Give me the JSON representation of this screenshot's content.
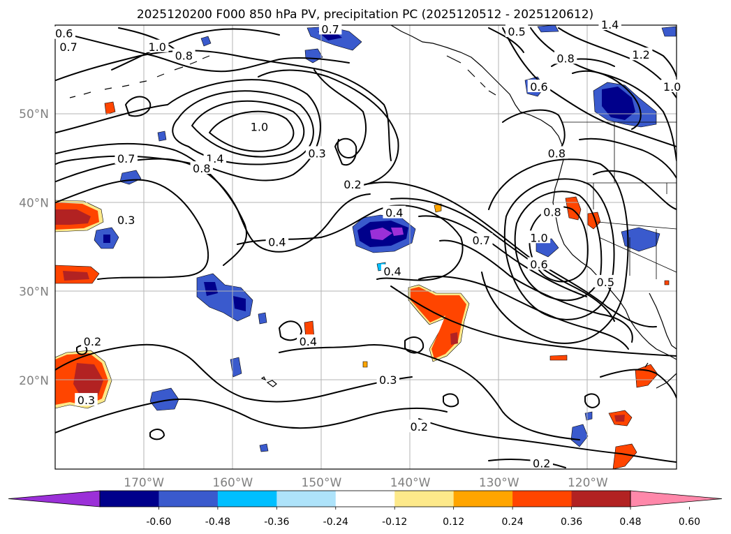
{
  "title": "2025120200 F000 850 hPa PV, precipitation PC (2025120512 - 2025120612)",
  "lat_labels": [
    {
      "label": "50°N",
      "lat": 50
    },
    {
      "label": "40°N",
      "lat": 40
    },
    {
      "label": "30°N",
      "lat": 30
    },
    {
      "label": "20°N",
      "lat": 20
    }
  ],
  "lon_labels": [
    {
      "label": "170°W",
      "lon": -170
    },
    {
      "label": "160°W",
      "lon": -160
    },
    {
      "label": "150°W",
      "lon": -150
    },
    {
      "label": "140°W",
      "lon": -140
    },
    {
      "label": "130°W",
      "lon": -130
    },
    {
      "label": "120°W",
      "lon": -120
    }
  ],
  "extent": {
    "lon": [
      -180,
      -110
    ],
    "lat": [
      10,
      60
    ]
  },
  "colorbar": {
    "colors": [
      "#9b30d8",
      "#00008b",
      "#3a5acd",
      "#00bfff",
      "#aee3fa",
      "#ffffff",
      "#fde98a",
      "#ffa500",
      "#ff4500",
      "#b22222",
      "#ff88aa"
    ],
    "tick_labels": [
      "-0.60",
      "-0.48",
      "-0.36",
      "-0.24",
      "-0.12",
      "0.12",
      "0.24",
      "0.36",
      "0.48",
      "0.60"
    ]
  },
  "contour_labels": [
    {
      "text": "0.6",
      "lon": -179,
      "lat": 59
    },
    {
      "text": "0.7",
      "lon": -178.5,
      "lat": 57.5
    },
    {
      "text": "1.0",
      "lon": -168.5,
      "lat": 57.5
    },
    {
      "text": "0.8",
      "lon": -165.5,
      "lat": 56.5
    },
    {
      "text": "0.7",
      "lon": -149,
      "lat": 59.5
    },
    {
      "text": "0.5",
      "lon": -128,
      "lat": 59.2
    },
    {
      "text": "1.4",
      "lon": -117.5,
      "lat": 60
    },
    {
      "text": "0.8",
      "lon": -122.5,
      "lat": 56.2
    },
    {
      "text": "1.2",
      "lon": -114,
      "lat": 56.6
    },
    {
      "text": "0.6",
      "lon": -125.5,
      "lat": 53
    },
    {
      "text": "1.0",
      "lon": -110.5,
      "lat": 53
    },
    {
      "text": "1.0",
      "lon": -157,
      "lat": 48.5
    },
    {
      "text": "1.4",
      "lon": -162,
      "lat": 44.9
    },
    {
      "text": "0.8",
      "lon": -163.5,
      "lat": 43.8
    },
    {
      "text": "0.7",
      "lon": -172,
      "lat": 44.9
    },
    {
      "text": "0.3",
      "lon": -150.5,
      "lat": 45.5
    },
    {
      "text": "0.2",
      "lon": -146.5,
      "lat": 42
    },
    {
      "text": "0.8",
      "lon": -123.5,
      "lat": 45.5
    },
    {
      "text": "0.3",
      "lon": -172,
      "lat": 38
    },
    {
      "text": "0.4",
      "lon": -141.8,
      "lat": 38.8
    },
    {
      "text": "0.4",
      "lon": -155,
      "lat": 35.5
    },
    {
      "text": "0.4",
      "lon": -142,
      "lat": 32.2
    },
    {
      "text": "0.7",
      "lon": -132,
      "lat": 35.7
    },
    {
      "text": "0.6",
      "lon": -125.5,
      "lat": 33
    },
    {
      "text": "1.0",
      "lon": -125.5,
      "lat": 36
    },
    {
      "text": "0.8",
      "lon": -124,
      "lat": 38.9
    },
    {
      "text": "0.5",
      "lon": -118,
      "lat": 31
    },
    {
      "text": "0.4",
      "lon": -151.5,
      "lat": 24.3
    },
    {
      "text": "0.2",
      "lon": -175.8,
      "lat": 24.3
    },
    {
      "text": "0.3",
      "lon": -176.5,
      "lat": 17.7
    },
    {
      "text": "0.3",
      "lon": -142.5,
      "lat": 20
    },
    {
      "text": "0.2",
      "lon": -139,
      "lat": 14.7
    },
    {
      "text": "0.2",
      "lon": -125.2,
      "lat": 10.6
    }
  ]
}
